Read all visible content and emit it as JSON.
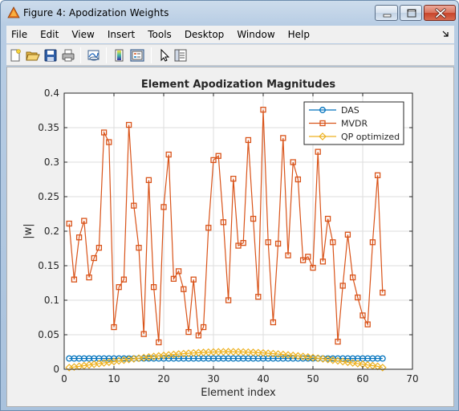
{
  "window": {
    "title": "Figure 4: Apodization Weights"
  },
  "menu": {
    "items": [
      "File",
      "Edit",
      "View",
      "Insert",
      "Tools",
      "Desktop",
      "Window",
      "Help"
    ]
  },
  "toolbar": {
    "icons": [
      "new-figure-icon",
      "open-file-icon",
      "save-icon",
      "print-icon",
      "link-plot-icon",
      "colorbar-icon",
      "legend-icon",
      "pointer-icon",
      "property-editor-icon"
    ]
  },
  "chart_data": {
    "type": "line",
    "title": "Element Apodization Magnitudes",
    "xlabel": "Element index",
    "ylabel": "|w|",
    "xlim": [
      0,
      70
    ],
    "ylim": [
      0,
      0.4
    ],
    "xticks": [
      0,
      10,
      20,
      30,
      40,
      50,
      60,
      70
    ],
    "yticks": [
      0,
      0.05,
      0.1,
      0.15,
      0.2,
      0.25,
      0.3,
      0.35,
      0.4
    ],
    "grid": true,
    "legend_position": "top-right",
    "series": [
      {
        "name": "DAS",
        "color": "#0072bd",
        "marker": "circle",
        "x": [
          1,
          2,
          3,
          4,
          5,
          6,
          7,
          8,
          9,
          10,
          11,
          12,
          13,
          14,
          15,
          16,
          17,
          18,
          19,
          20,
          21,
          22,
          23,
          24,
          25,
          26,
          27,
          28,
          29,
          30,
          31,
          32,
          33,
          34,
          35,
          36,
          37,
          38,
          39,
          40,
          41,
          42,
          43,
          44,
          45,
          46,
          47,
          48,
          49,
          50,
          51,
          52,
          53,
          54,
          55,
          56,
          57,
          58,
          59,
          60,
          61,
          62,
          63,
          64
        ],
        "values": [
          0.0156,
          0.0156,
          0.0156,
          0.0156,
          0.0156,
          0.0156,
          0.0156,
          0.0156,
          0.0156,
          0.0156,
          0.0156,
          0.0156,
          0.0156,
          0.0156,
          0.0156,
          0.0156,
          0.0156,
          0.0156,
          0.0156,
          0.0156,
          0.0156,
          0.0156,
          0.0156,
          0.0156,
          0.0156,
          0.0156,
          0.0156,
          0.0156,
          0.0156,
          0.0156,
          0.0156,
          0.0156,
          0.0156,
          0.0156,
          0.0156,
          0.0156,
          0.0156,
          0.0156,
          0.0156,
          0.0156,
          0.0156,
          0.0156,
          0.0156,
          0.0156,
          0.0156,
          0.0156,
          0.0156,
          0.0156,
          0.0156,
          0.0156,
          0.0156,
          0.0156,
          0.0156,
          0.0156,
          0.0156,
          0.0156,
          0.0156,
          0.0156,
          0.0156,
          0.0156,
          0.0156,
          0.0156,
          0.0156,
          0.0156
        ]
      },
      {
        "name": "MVDR",
        "color": "#d95319",
        "marker": "square",
        "x": [
          1,
          2,
          3,
          4,
          5,
          6,
          7,
          8,
          9,
          10,
          11,
          12,
          13,
          14,
          15,
          16,
          17,
          18,
          19,
          20,
          21,
          22,
          23,
          24,
          25,
          26,
          27,
          28,
          29,
          30,
          31,
          32,
          33,
          34,
          35,
          36,
          37,
          38,
          39,
          40,
          41,
          42,
          43,
          44,
          45,
          46,
          47,
          48,
          49,
          50,
          51,
          52,
          53,
          54,
          55,
          56,
          57,
          58,
          59,
          60,
          61,
          62,
          63,
          64
        ],
        "values": [
          0.211,
          0.13,
          0.191,
          0.215,
          0.133,
          0.161,
          0.176,
          0.343,
          0.329,
          0.061,
          0.119,
          0.13,
          0.354,
          0.237,
          0.176,
          0.051,
          0.274,
          0.119,
          0.039,
          0.235,
          0.311,
          0.131,
          0.142,
          0.116,
          0.054,
          0.13,
          0.049,
          0.061,
          0.205,
          0.303,
          0.309,
          0.213,
          0.1,
          0.276,
          0.179,
          0.183,
          0.332,
          0.218,
          0.105,
          0.376,
          0.184,
          0.068,
          0.182,
          0.335,
          0.165,
          0.3,
          0.275,
          0.158,
          0.163,
          0.147,
          0.315,
          0.156,
          0.218,
          0.184,
          0.04,
          0.121,
          0.195,
          0.133,
          0.104,
          0.078,
          0.065,
          0.184,
          0.281,
          0.111
        ]
      },
      {
        "name": "QP optimized",
        "color": "#edb120",
        "marker": "diamond",
        "x": [
          1,
          2,
          3,
          4,
          5,
          6,
          7,
          8,
          9,
          10,
          11,
          12,
          13,
          14,
          15,
          16,
          17,
          18,
          19,
          20,
          21,
          22,
          23,
          24,
          25,
          26,
          27,
          28,
          29,
          30,
          31,
          32,
          33,
          34,
          35,
          36,
          37,
          38,
          39,
          40,
          41,
          42,
          43,
          44,
          45,
          46,
          47,
          48,
          49,
          50,
          51,
          52,
          53,
          54,
          55,
          56,
          57,
          58,
          59,
          60,
          61,
          62,
          63,
          64
        ],
        "values": [
          0.0024,
          0.0033,
          0.0042,
          0.0052,
          0.0062,
          0.0072,
          0.0082,
          0.0092,
          0.0102,
          0.0112,
          0.0122,
          0.0132,
          0.0142,
          0.0151,
          0.016,
          0.0169,
          0.0177,
          0.0185,
          0.0193,
          0.02,
          0.0207,
          0.0214,
          0.022,
          0.0226,
          0.0231,
          0.0236,
          0.024,
          0.0244,
          0.0247,
          0.025,
          0.0252,
          0.0253,
          0.0254,
          0.0253,
          0.0252,
          0.025,
          0.0247,
          0.0244,
          0.024,
          0.0236,
          0.0231,
          0.0226,
          0.022,
          0.0214,
          0.0207,
          0.02,
          0.0193,
          0.0185,
          0.0177,
          0.0169,
          0.016,
          0.0151,
          0.0142,
          0.0132,
          0.0122,
          0.0112,
          0.0102,
          0.0092,
          0.0082,
          0.0072,
          0.0062,
          0.0052,
          0.0042,
          0.0024
        ]
      }
    ]
  }
}
